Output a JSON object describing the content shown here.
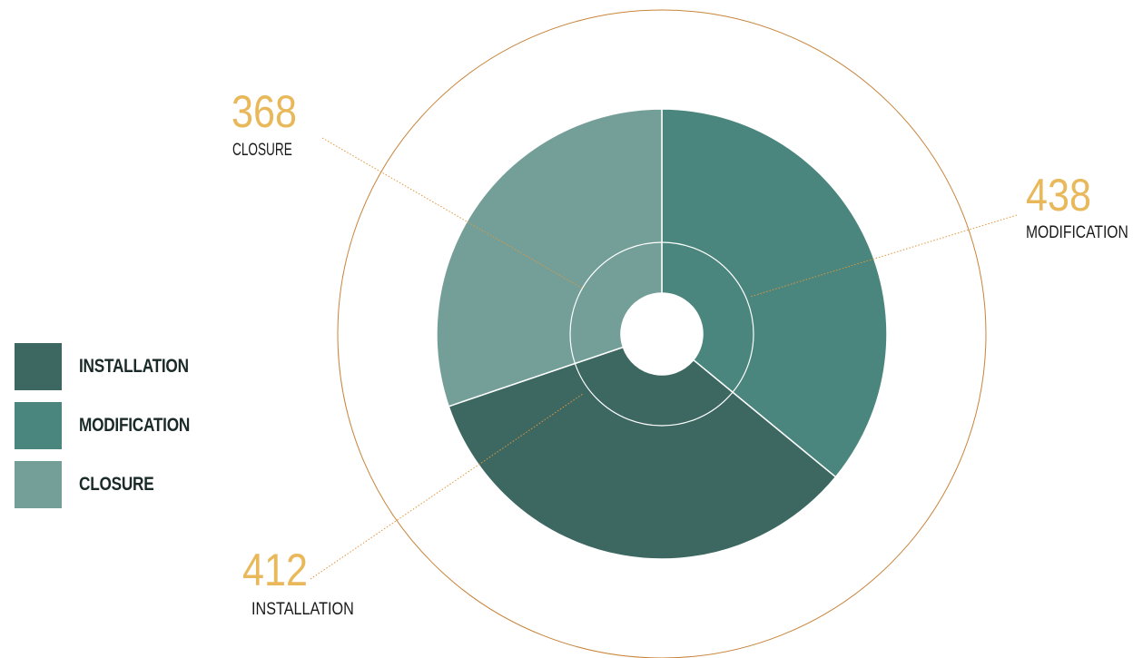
{
  "chart_data": {
    "type": "pie",
    "variant": "donut",
    "categories": [
      "INSTALLATION",
      "MODIFICATION",
      "CLOSURE"
    ],
    "values": [
      412,
      438,
      368
    ],
    "legend": {
      "placement": "left",
      "entries": [
        "INSTALLATION",
        "MODIFICATION",
        "CLOSURE"
      ]
    },
    "callouts": [
      {
        "value": "412",
        "label": "INSTALLATION"
      },
      {
        "value": "438",
        "label": "MODIFICATION"
      },
      {
        "value": "368",
        "label": "CLOSURE"
      }
    ],
    "colors": {
      "INSTALLATION": "#3d6862",
      "MODIFICATION": "#4a867d",
      "CLOSURE": "#739f98",
      "accent_value": "#e8b85a",
      "outer_ring": "#c8843a",
      "leader_line": "#e0963e"
    }
  }
}
